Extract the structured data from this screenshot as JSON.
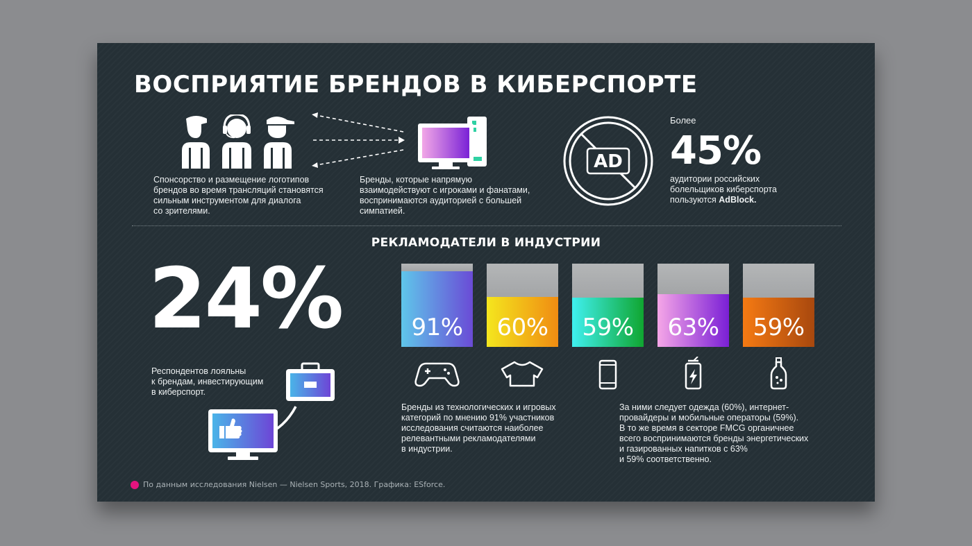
{
  "title": "ВОСПРИЯТИЕ БРЕНДОВ В КИБЕРСПОРТЕ",
  "left_text": [
    "Спонсорство и размещение логотипов",
    "брендов во время трансляций становятся",
    "сильным инструментом для диалога",
    "со зрителями."
  ],
  "mid_text": [
    "Бренды, которые напрямую",
    "взаимодействуют с игроками и фанатами,",
    "воспринимаются аудиторией с большей",
    "симпатией."
  ],
  "ad_badge": "AD",
  "adblock": {
    "prefix": "Более",
    "value": "45%",
    "lines": [
      "аудитории российских",
      "болельщиков киберспорта"
    ],
    "last_line_prefix": "пользуются ",
    "last_line_bold": "AdBlock."
  },
  "subtitle": "РЕКЛАМОДАТЕЛИ В ИНДУСТРИИ",
  "loyal": {
    "value": "24%",
    "lines": [
      "Респондентов лояльны",
      "к брендам, инвестирующим",
      "в киберспорт."
    ]
  },
  "colors": {
    "background": "#253036",
    "page": "#8b8c8f",
    "accent_dot": "#e4137f",
    "bar_top": "#a3a5a7"
  },
  "chart_data": {
    "type": "bar",
    "title": "РЕКЛАМОДАТЕЛИ В ИНДУСТРИИ",
    "categories": [
      "games-tech",
      "clothing",
      "mobile-operators",
      "energy-drinks",
      "soda"
    ],
    "icons": [
      "gamepad-icon",
      "tshirt-icon",
      "smartphone-icon",
      "energy-can-icon",
      "soda-bottle-icon"
    ],
    "values": [
      91,
      60,
      59,
      63,
      59
    ],
    "labels": [
      "91%",
      "60%",
      "59%",
      "63%",
      "59%"
    ],
    "gradients": [
      [
        "#5fc6ea",
        "#6a4bd6"
      ],
      [
        "#f4e61e",
        "#f08c12"
      ],
      [
        "#3ff0f0",
        "#10a630"
      ],
      [
        "#f5a6e7",
        "#7a1fd6"
      ],
      [
        "#f57a13",
        "#a8480e"
      ]
    ],
    "ylim": [
      0,
      100
    ],
    "xlabel": "",
    "ylabel": ""
  },
  "bottom_left_text": [
    "Бренды из технологических и игровых",
    "категорий по мнению 91% участников",
    "исследования считаются наиболее",
    "релевантными рекламодателями",
    "в индустрии."
  ],
  "bottom_right_text": [
    "За ними следует одежда (60%), интернет-",
    "провайдеры и мобильные операторы (59%).",
    "В то же время в секторе FMCG органичнее",
    "всего воспринимаются бренды энергетических",
    "и газированных напитков с 63%",
    "и 59% соответственно."
  ],
  "footer": "По данным исследования Nielsen — Nielsen Sports, 2018. Графика: ESforce."
}
